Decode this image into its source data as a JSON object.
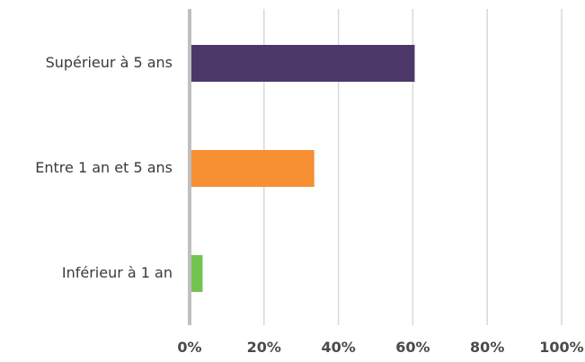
{
  "chart_data": {
    "type": "bar",
    "orientation": "horizontal",
    "categories": [
      "Supérieur à 5 ans",
      "Entre 1 an et 5 ans",
      "Inférieur à 1 an"
    ],
    "values": [
      60.5,
      33.5,
      3.5
    ],
    "colors": [
      "#4b3869",
      "#f78f33",
      "#72c44f"
    ],
    "x_ticks": [
      "0%",
      "20%",
      "40%",
      "60%",
      "80%",
      "100%"
    ],
    "xlim": [
      0,
      100
    ],
    "grid": true,
    "legend": "none",
    "title": "",
    "xlabel": "",
    "ylabel": ""
  }
}
